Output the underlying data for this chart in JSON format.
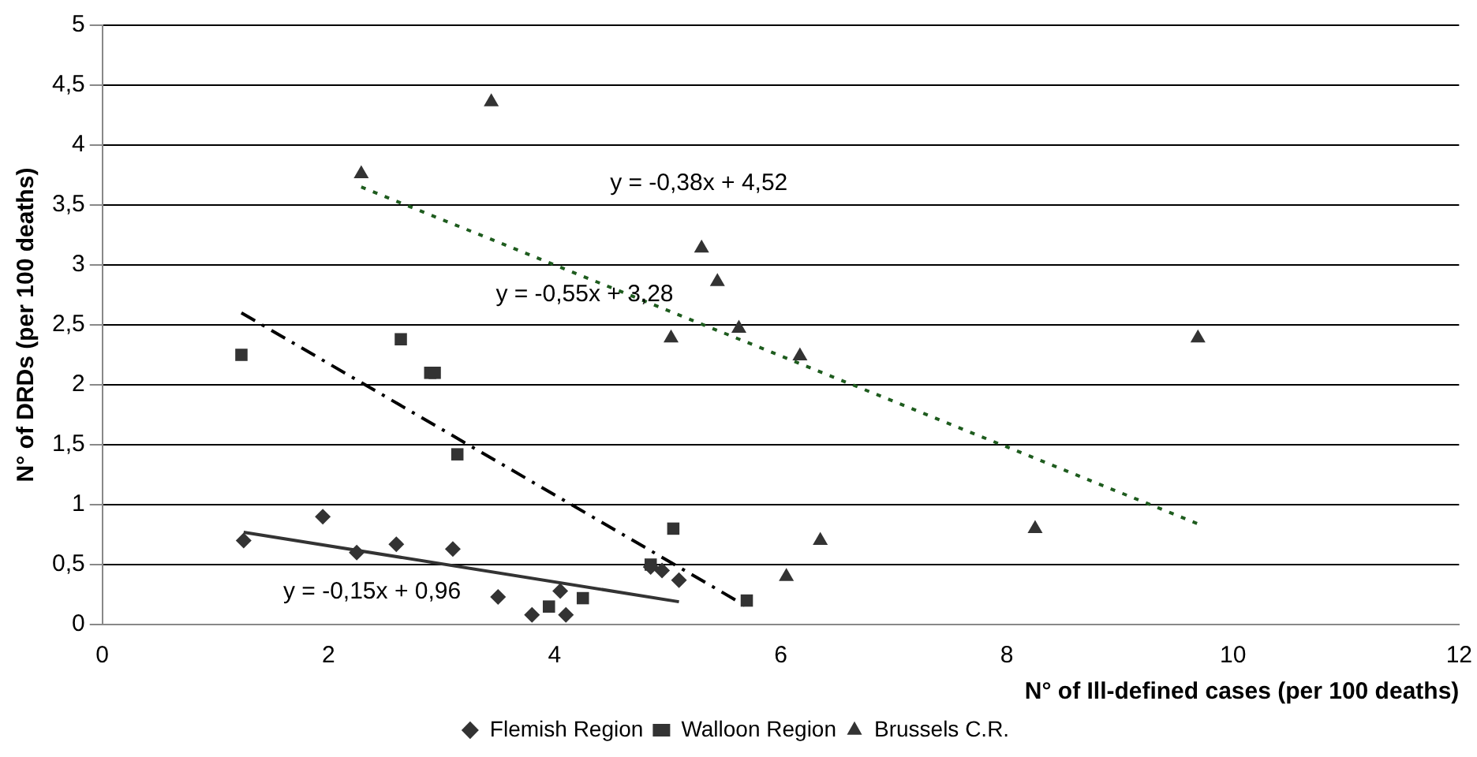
{
  "chart_data": {
    "type": "scatter",
    "xlabel": "N° of Ill-defined cases (per 100 deaths)",
    "ylabel": "N° of DRDs (per 100 deaths)",
    "xlim": [
      0,
      12
    ],
    "xticks": [
      0,
      2,
      4,
      6,
      8,
      10,
      12
    ],
    "ylim": [
      0,
      5
    ],
    "yticks": [
      0,
      {
        "value": 0.5,
        "label": "0,5"
      },
      1,
      {
        "value": 1.5,
        "label": "1,5"
      },
      2,
      {
        "value": 2.5,
        "label": "2,5"
      },
      3,
      {
        "value": 3.5,
        "label": "3,5"
      },
      4,
      {
        "value": 4.5,
        "label": "4,5"
      },
      5
    ],
    "grid": "y",
    "legend": "bottom",
    "series": [
      {
        "name": "Flemish Region",
        "color": "#333333",
        "marker": "diamond",
        "x": [
          1.25,
          1.95,
          2.25,
          2.6,
          3.1,
          3.5,
          3.8,
          4.05,
          4.1,
          4.85,
          4.95,
          5.1
        ],
        "values": [
          0.7,
          0.9,
          0.6,
          0.67,
          0.63,
          0.23,
          0.08,
          0.28,
          0.08,
          0.48,
          0.45,
          0.37
        ]
      },
      {
        "name": "Walloon Region",
        "color": "#333333",
        "marker": "square",
        "x": [
          1.23,
          2.64,
          2.9,
          2.94,
          3.14,
          3.95,
          4.25,
          4.85,
          5.05,
          5.7
        ],
        "values": [
          2.25,
          2.38,
          2.1,
          2.1,
          1.42,
          0.15,
          0.22,
          0.5,
          0.8,
          0.2
        ]
      },
      {
        "name": "Brussels C.R.",
        "color": "#333333",
        "marker": "triangle",
        "x": [
          2.29,
          3.44,
          5.03,
          5.3,
          5.44,
          5.63,
          6.05,
          6.17,
          6.35,
          8.25,
          9.69
        ],
        "values": [
          3.76,
          4.36,
          2.39,
          3.14,
          2.86,
          2.47,
          0.4,
          2.24,
          0.7,
          0.8,
          2.39
        ]
      },
      {
        "type": "line",
        "color": "#333333",
        "marker": "none",
        "line_style": "solid",
        "x": [
          1.25,
          5.1
        ],
        "values": [
          0.77,
          0.19
        ]
      },
      {
        "type": "line",
        "color": "#000000",
        "marker": "none",
        "line_style": "dashdot",
        "x": [
          1.23,
          5.7
        ],
        "values": [
          2.6,
          0.15
        ]
      },
      {
        "type": "line",
        "color": "#1e5c1e",
        "marker": "none",
        "line_style": "dotted",
        "x": [
          2.29,
          9.69
        ],
        "values": [
          3.65,
          0.84
        ]
      }
    ],
    "annotations": [
      "y = -0,15x + 0,96",
      "y = -0,55x + 3,28",
      "y = -0,38x + 4,52"
    ]
  }
}
